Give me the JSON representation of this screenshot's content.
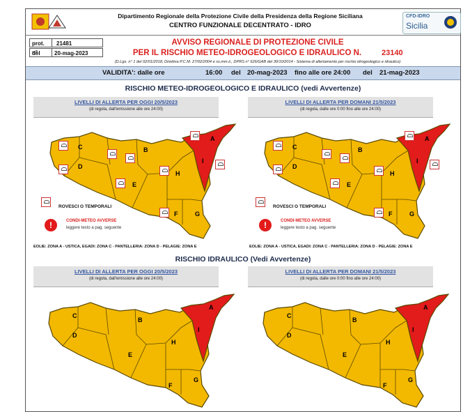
{
  "header": {
    "department": "Dipartimento Regionale della Protezione Civile della Presidenza della Regione Siciliana",
    "centro": "CENTRO FUNZIONALE DECENTRATO - IDRO",
    "badge_top": "CFD-IDRO",
    "badge_bottom": "Sicilia"
  },
  "protocol": {
    "prot_label": "prot. n°",
    "prot_value": "21481",
    "del_label": "del",
    "del_value": "20-mag-2023"
  },
  "avviso": {
    "line1": "AVVISO REGIONALE DI PROTEZIONE CIVILE",
    "line2": "PER IL RISCHIO METEO-IDROGEOLOGICO E IDRAULICO N.",
    "number": "23140",
    "legal": "(D.Lgs. n° 1 del 02/01/2018, Direttiva P.C.M. 27/02/2004 e ss.mm.ii., DPRS n° 626/GAB del 30/10/2014 - Sistema di allertamento per rischio idrogeologico e idraulico)"
  },
  "validita": {
    "label": "VALIDITA': dalle ore",
    "from_hour": "16:00",
    "del1": "del",
    "from_date": "20-mag-2023",
    "until": "fino alle ore 24:00",
    "del2": "del",
    "to_date": "21-mag-2023"
  },
  "section_meteo": {
    "title": "RISCHIO METEO-IDROGEOLOGICO E IDRAULICO (vedi Avvertenze)",
    "left_title": "LIVELLI DI ALLERTA PER OGGI 20/5/2023",
    "left_sub": "(di regola, dall'emissione alle ore 24:00)",
    "right_title": "LIVELLI DI ALLERTA PER DOMANI 21/5/2023",
    "right_sub": "(di regola, dalle ore 0:00 fino alle ore 24:00)",
    "rovesci": "ROVESCI O TEMPORALI",
    "condi_title": "CONDI-METEO AVVERSE",
    "condi_sub": "leggere testo a pag. seguente",
    "warn_glyph": "!",
    "eolie": "EOLIE: ZONA A - USTICA, EGADI: ZONA C - PANTELLERIA: ZONA D - PELAGIE: ZONA E"
  },
  "section_idraulico": {
    "title": "RISCHIO IDRAULICO (Vedi Avvertenze)",
    "left_title": "LIVELLI DI ALLERTA PER OGGI 20/5/2023",
    "left_sub": "(di regola, dall'emissione alle ore 24:00)",
    "right_title": "LIVELLI DI ALLERTA PER DOMANI 21/5/2023",
    "right_sub": "(di regola, dalle ore 0:00 fino alle ore 24:00)"
  },
  "zones": {
    "A": "A",
    "B": "B",
    "C": "C",
    "D": "D",
    "E": "E",
    "F": "F",
    "G": "G",
    "H": "H",
    "I": "I"
  },
  "colors": {
    "orange": "#f3b800",
    "red": "#e21b1b",
    "outline": "#5a4a00"
  }
}
